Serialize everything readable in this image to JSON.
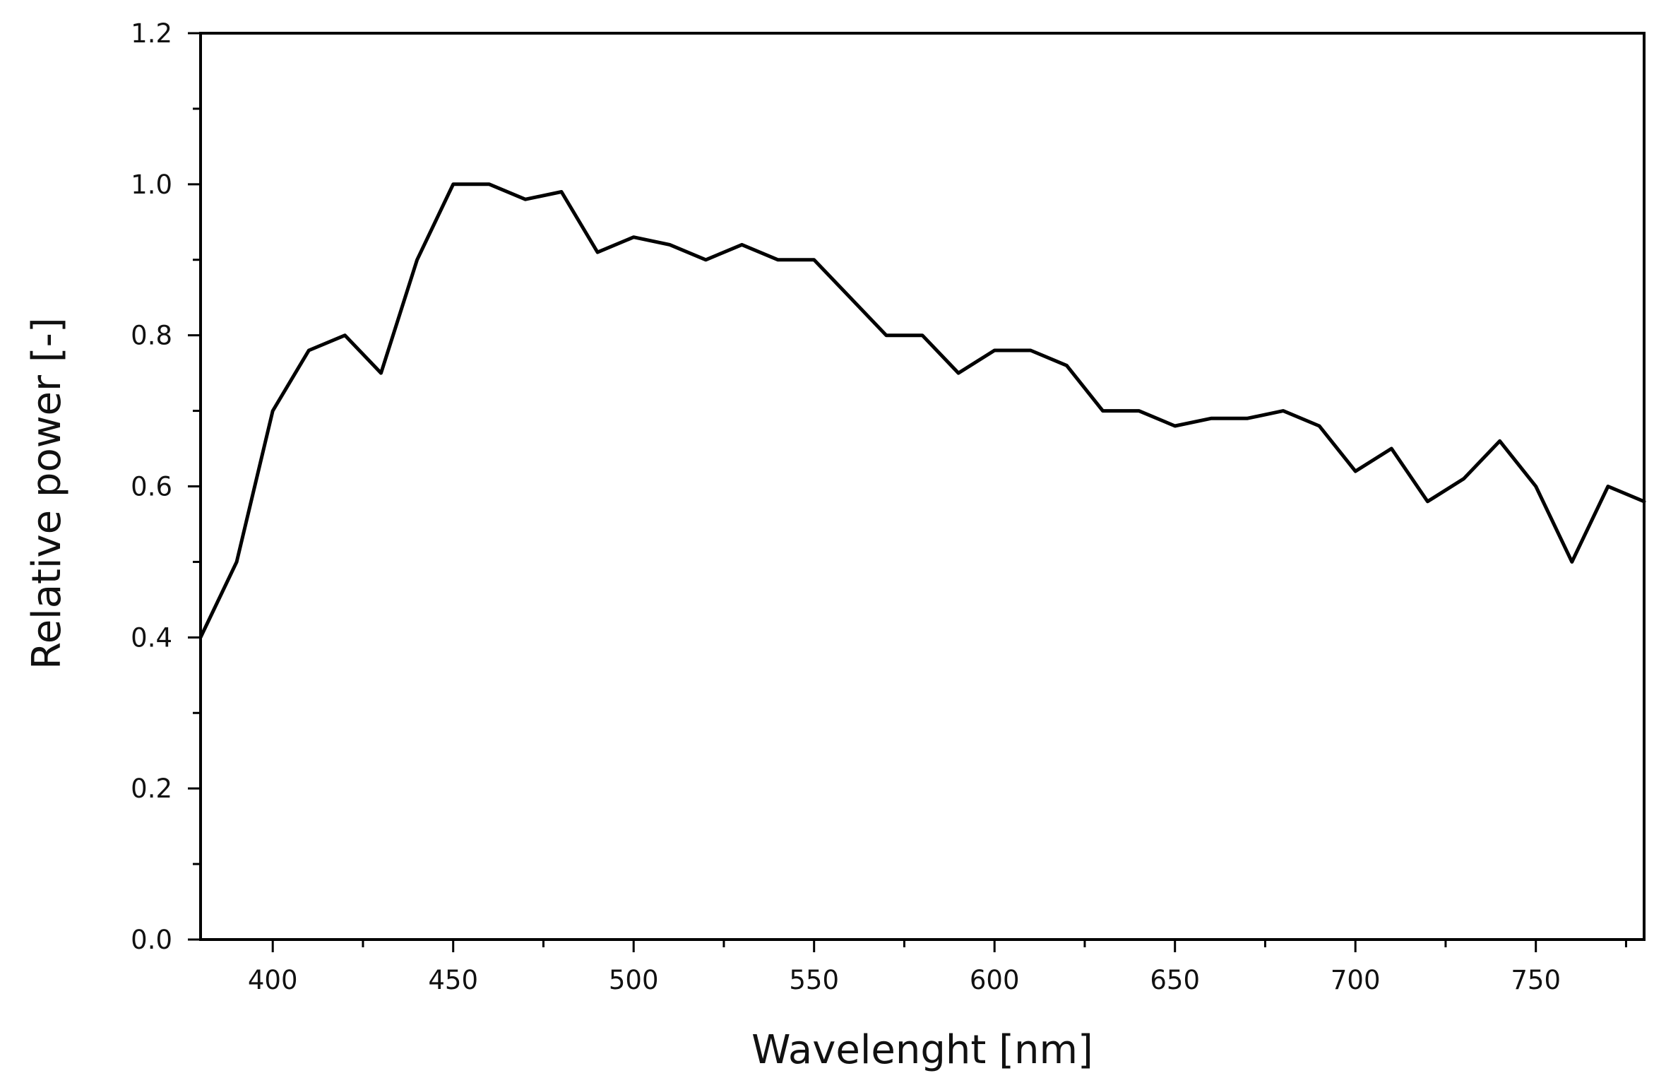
{
  "chart_data": {
    "type": "line",
    "title": "",
    "xlabel": "Wavelenght [nm]",
    "ylabel": "Relative power [-]",
    "xlim": [
      380,
      780
    ],
    "ylim": [
      0.0,
      1.2
    ],
    "x_ticks": [
      400,
      450,
      500,
      550,
      600,
      650,
      700,
      750
    ],
    "x_tick_labels": [
      "400",
      "450",
      "500",
      "550",
      "600",
      "650",
      "700",
      "750"
    ],
    "y_ticks": [
      0.0,
      0.2,
      0.4,
      0.6,
      0.8,
      1.0,
      1.2
    ],
    "y_tick_labels": [
      "0.0",
      "0.2",
      "0.4",
      "0.6",
      "0.8",
      "1.0",
      "1.2"
    ],
    "grid": false,
    "legend": "none",
    "line_color": "#000000",
    "series": [
      {
        "x": [
          380,
          390,
          400,
          410,
          420,
          430,
          440,
          450,
          460,
          470,
          480,
          490,
          500,
          510,
          520,
          530,
          540,
          550,
          560,
          570,
          580,
          590,
          600,
          610,
          620,
          630,
          640,
          650,
          660,
          670,
          680,
          690,
          700,
          710,
          720,
          730,
          740,
          750,
          760,
          770,
          780
        ],
        "values": [
          0.4,
          0.5,
          0.7,
          0.78,
          0.8,
          0.75,
          0.9,
          1.0,
          1.0,
          0.98,
          0.99,
          0.91,
          0.93,
          0.92,
          0.9,
          0.92,
          0.9,
          0.9,
          0.85,
          0.8,
          0.8,
          0.75,
          0.78,
          0.78,
          0.76,
          0.7,
          0.7,
          0.68,
          0.69,
          0.69,
          0.7,
          0.68,
          0.62,
          0.65,
          0.58,
          0.61,
          0.66,
          0.6,
          0.5,
          0.6,
          0.58
        ]
      }
    ]
  }
}
